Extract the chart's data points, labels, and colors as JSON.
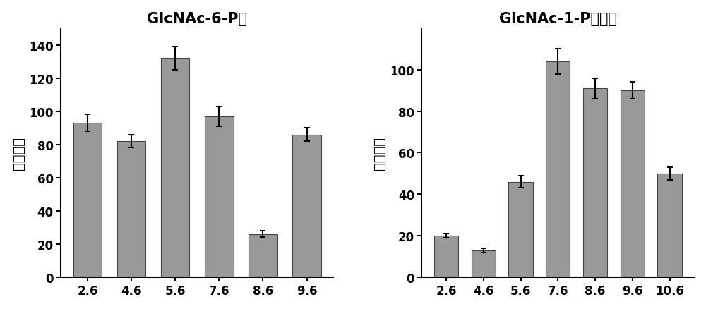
{
  "left": {
    "title": "GlcNAc-6-P：",
    "categories": [
      "2.6",
      "4.6",
      "5.6",
      "7.6",
      "8.6",
      "9.6"
    ],
    "values": [
      93,
      82,
      132,
      97,
      26,
      86
    ],
    "errors": [
      5,
      4,
      7,
      6,
      2,
      4
    ],
    "ylabel": "相对酶活",
    "ylim": [
      0,
      150
    ],
    "yticks": [
      0,
      20,
      40,
      60,
      80,
      100,
      120,
      140
    ]
  },
  "right": {
    "title": "GlcNAc-1-P为底物",
    "categories": [
      "2.6",
      "4.6",
      "5.6",
      "7.6",
      "8.6",
      "9.6",
      "10.6"
    ],
    "values": [
      20,
      13,
      46,
      104,
      91,
      90,
      50
    ],
    "errors": [
      1,
      1,
      3,
      6,
      5,
      4,
      3
    ],
    "ylabel": "相对酶活",
    "ylim": [
      0,
      120
    ],
    "yticks": [
      0,
      20,
      40,
      60,
      80,
      100
    ]
  },
  "bar_color": "#999999",
  "bar_edgecolor": "#444444",
  "background_color": "#ffffff",
  "title_fontsize": 15,
  "axis_fontsize": 14,
  "tick_fontsize": 12
}
